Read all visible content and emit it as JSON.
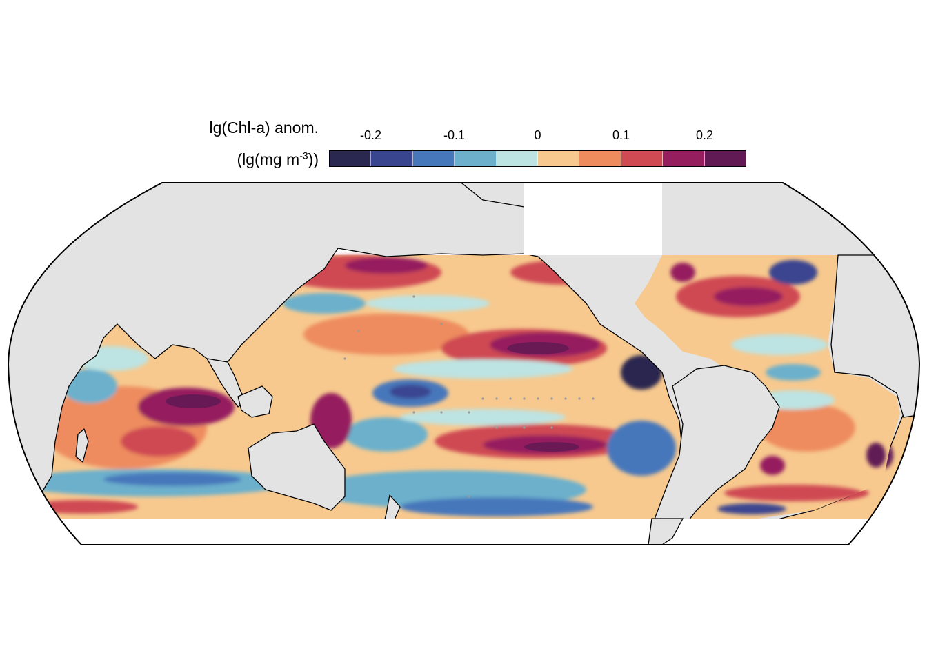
{
  "legend": {
    "title_line1": "lg(Chl-a) anom.",
    "title_line2_prefix": "(lg(mg m",
    "title_line2_sup": "-3",
    "title_line2_suffix": "))",
    "tick_labels": [
      "-0.2",
      "-0.1",
      "0",
      "0.1",
      "0.2"
    ],
    "colors": [
      "#2a2850",
      "#3a4590",
      "#4677bb",
      "#6cb0cc",
      "#bde3e2",
      "#f7c98e",
      "#ee8c5e",
      "#cf4a52",
      "#951f5e",
      "#611a54"
    ],
    "bins": [
      -0.25,
      -0.2,
      -0.15,
      -0.1,
      -0.05,
      0,
      0.05,
      0.1,
      0.15,
      0.2,
      0.25
    ]
  },
  "map": {
    "projection": "equal-earth, Pacific-centred",
    "land_color": "#e3e3e3",
    "ocean_nodata_color": "#ffffff",
    "coastline_color": "#000000",
    "stipple_color": "#9a9a9a"
  }
}
